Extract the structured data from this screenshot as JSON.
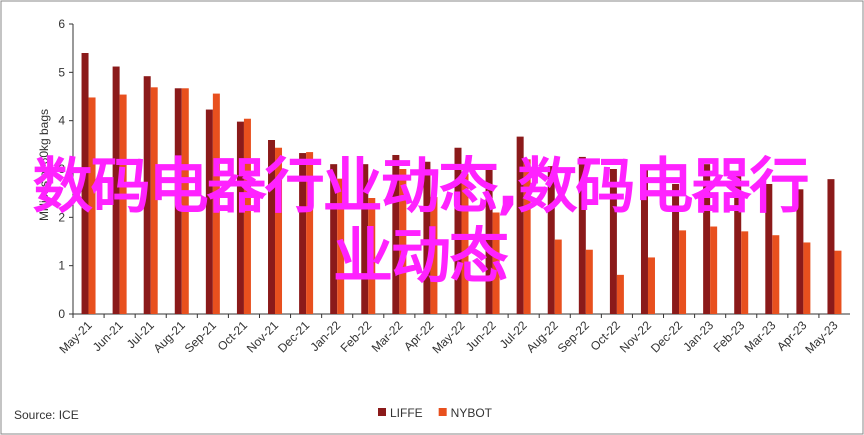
{
  "chart_data": {
    "type": "bar",
    "y_axis_label": "Millions of 60kg bags",
    "source": "Source: ICE",
    "categories": [
      "May-21",
      "Jun-21",
      "Jul-21",
      "Aug-21",
      "Sep-21",
      "Oct-21",
      "Nov-21",
      "Dec-21",
      "Jan-22",
      "Feb-22",
      "Mar-22",
      "Apr-22",
      "May-22",
      "Jun-22",
      "Jul-22",
      "Aug-22",
      "Sep-22",
      "Oct-22",
      "Nov-22",
      "Dec-22",
      "Jan-23",
      "Feb-23",
      "Mar-23",
      "Apr-23",
      "May-23"
    ],
    "series": [
      {
        "name": "LIFFE",
        "color": "#8b1a1a",
        "values": [
          5.4,
          5.12,
          4.92,
          4.67,
          4.23,
          3.98,
          3.6,
          3.33,
          3.1,
          3.1,
          3.29,
          3.15,
          3.44,
          3.1,
          3.67,
          3.06,
          3.25,
          3.0,
          3.04,
          2.69,
          3.1,
          2.9,
          2.69,
          2.58,
          2.79
        ]
      },
      {
        "name": "NYBOT",
        "color": "#e8501e",
        "values": [
          4.48,
          4.54,
          4.69,
          4.67,
          4.56,
          4.04,
          3.44,
          3.35,
          2.8,
          2.4,
          3.0,
          2.42,
          2.9,
          2.1,
          3.2,
          1.54,
          1.33,
          0.81,
          1.17,
          1.73,
          1.81,
          1.71,
          1.63,
          1.48,
          1.31
        ]
      }
    ],
    "ylim": [
      0,
      6
    ],
    "yticks": [
      0,
      1,
      2,
      3,
      4,
      5,
      6
    ],
    "legend": "bottom",
    "overlay_text": "数码电器行业动态,数码电器行业动态"
  }
}
